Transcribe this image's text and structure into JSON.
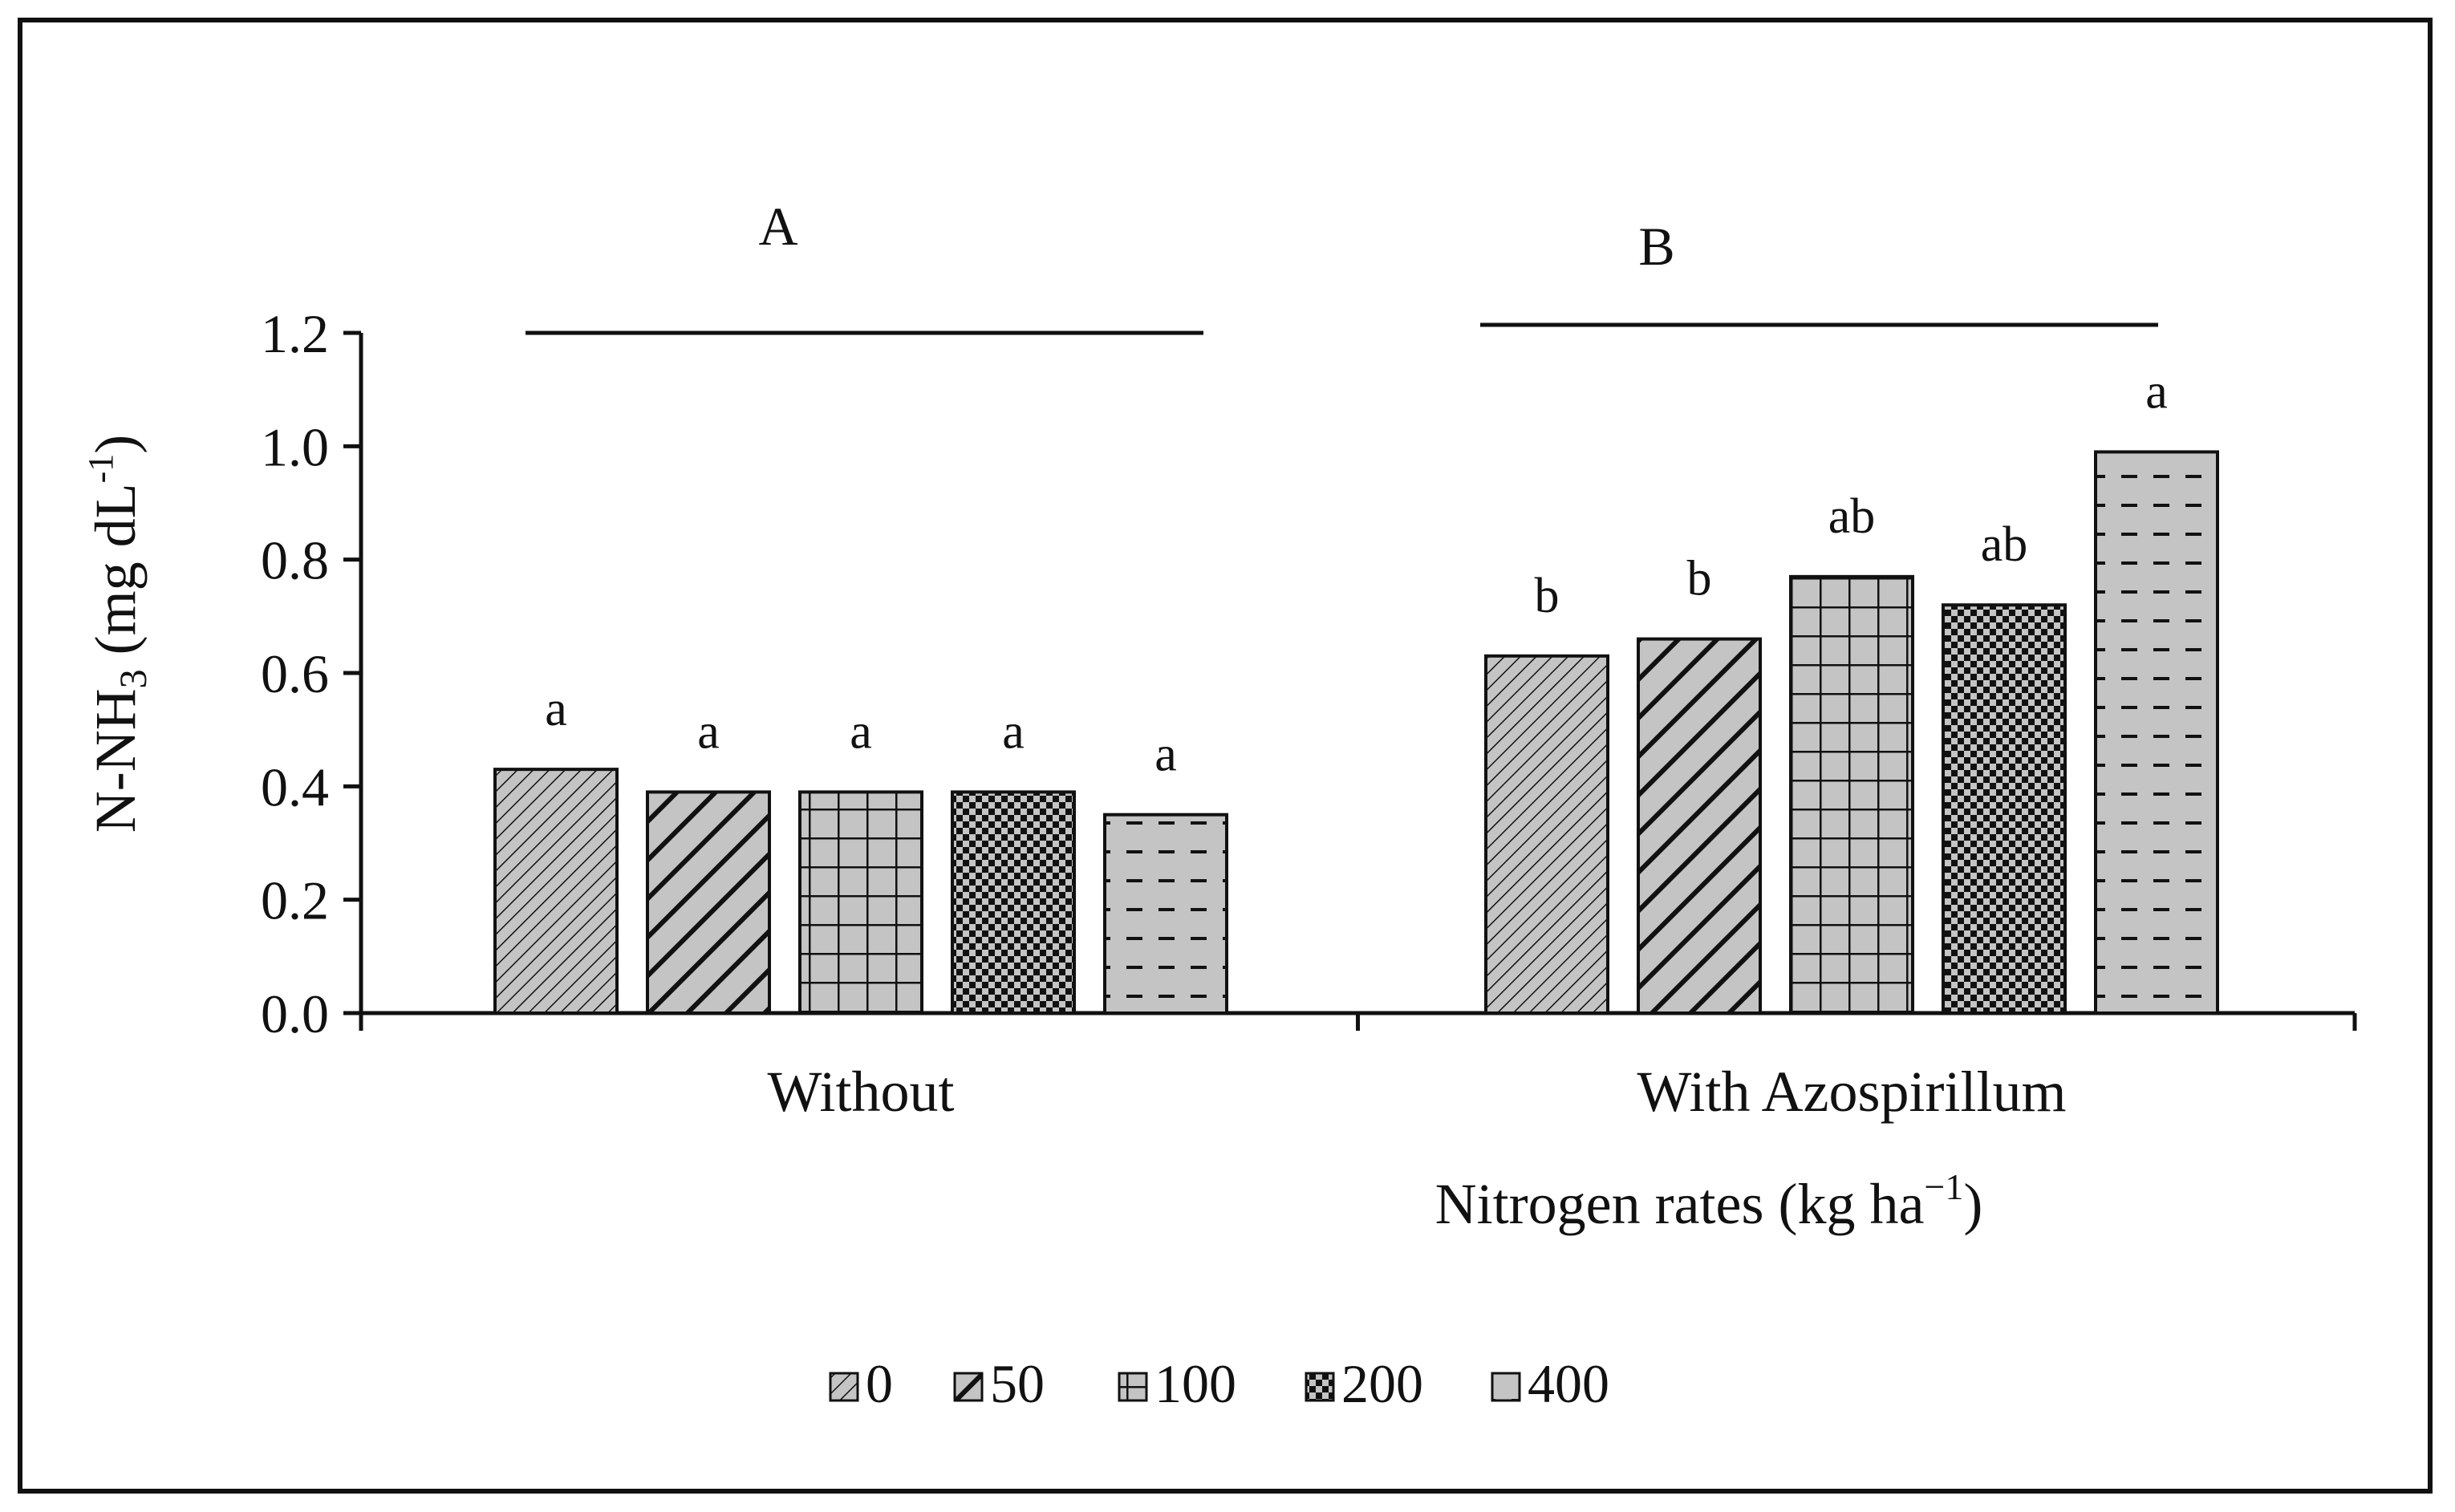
{
  "chart_data": {
    "type": "bar",
    "categories": [
      "Without",
      "With Azospirillum"
    ],
    "series": [
      {
        "name": "0",
        "values": [
          0.43,
          0.63
        ]
      },
      {
        "name": "50",
        "values": [
          0.39,
          0.66
        ]
      },
      {
        "name": "100",
        "values": [
          0.39,
          0.77
        ]
      },
      {
        "name": "200",
        "values": [
          0.39,
          0.72
        ]
      },
      {
        "name": "400",
        "values": [
          0.35,
          0.99
        ]
      }
    ],
    "significance_letters": [
      [
        "a",
        "a",
        "a",
        "a",
        "a"
      ],
      [
        "b",
        "b",
        "ab",
        "ab",
        "a"
      ]
    ],
    "group_letters": [
      "A",
      "B"
    ],
    "xlabel": "Nitrogen rates (kg ha",
    "xlabel_sup": "−1",
    "xlabel_end": ")",
    "ylabel": "N-NH",
    "ylabel_sub": "3",
    "ylabel_unit": " (mg dL",
    "ylabel_sup": "-1",
    "ylabel_end": ")",
    "ylim": [
      0,
      1.2
    ],
    "yticks": [
      "0.0",
      "0.2",
      "0.4",
      "0.6",
      "0.8",
      "1.0",
      "1.2"
    ],
    "legend_position": "bottom-center",
    "grid": false,
    "colors": {
      "bar_fill": "#c4c4c4",
      "ink": "#111111"
    }
  }
}
